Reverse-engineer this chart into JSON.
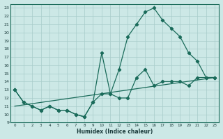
{
  "xlabel": "Humidex (Indice chaleur)",
  "background_color": "#cce8e6",
  "grid_color": "#a8ccca",
  "line_color": "#1a6b5a",
  "xlim": [
    -0.5,
    23.5
  ],
  "ylim": [
    9,
    23.5
  ],
  "xticks": [
    0,
    1,
    2,
    3,
    4,
    5,
    6,
    7,
    8,
    9,
    10,
    11,
    12,
    13,
    14,
    15,
    16,
    17,
    18,
    19,
    20,
    21,
    22,
    23
  ],
  "yticks": [
    9,
    10,
    11,
    12,
    13,
    14,
    15,
    16,
    17,
    18,
    19,
    20,
    21,
    22,
    23
  ],
  "line1_x": [
    0,
    1,
    2,
    3,
    4,
    5,
    6,
    7,
    8,
    9,
    10,
    11,
    12,
    13,
    14,
    15,
    16,
    17,
    18,
    19,
    20,
    21,
    22,
    23
  ],
  "line1_y": [
    13.0,
    11.5,
    11.0,
    10.5,
    11.0,
    10.5,
    10.5,
    10.0,
    9.7,
    11.5,
    12.5,
    12.5,
    15.5,
    19.5,
    21.0,
    22.5,
    23.0,
    21.5,
    20.5,
    19.5,
    17.5,
    16.5,
    14.5,
    14.5
  ],
  "line2_x": [
    0,
    1,
    2,
    3,
    4,
    5,
    6,
    7,
    8,
    9,
    10,
    11,
    12,
    13,
    14,
    15,
    16,
    17,
    18,
    19,
    20,
    21,
    22,
    23
  ],
  "line2_y": [
    13.0,
    11.5,
    11.0,
    10.5,
    11.0,
    10.5,
    10.5,
    10.0,
    9.7,
    11.5,
    17.5,
    12.5,
    12.0,
    12.0,
    14.5,
    15.5,
    13.5,
    14.0,
    14.0,
    14.0,
    13.5,
    14.5,
    14.5,
    14.5
  ],
  "line3_x": [
    0,
    23
  ],
  "line3_y": [
    11.0,
    14.5
  ]
}
